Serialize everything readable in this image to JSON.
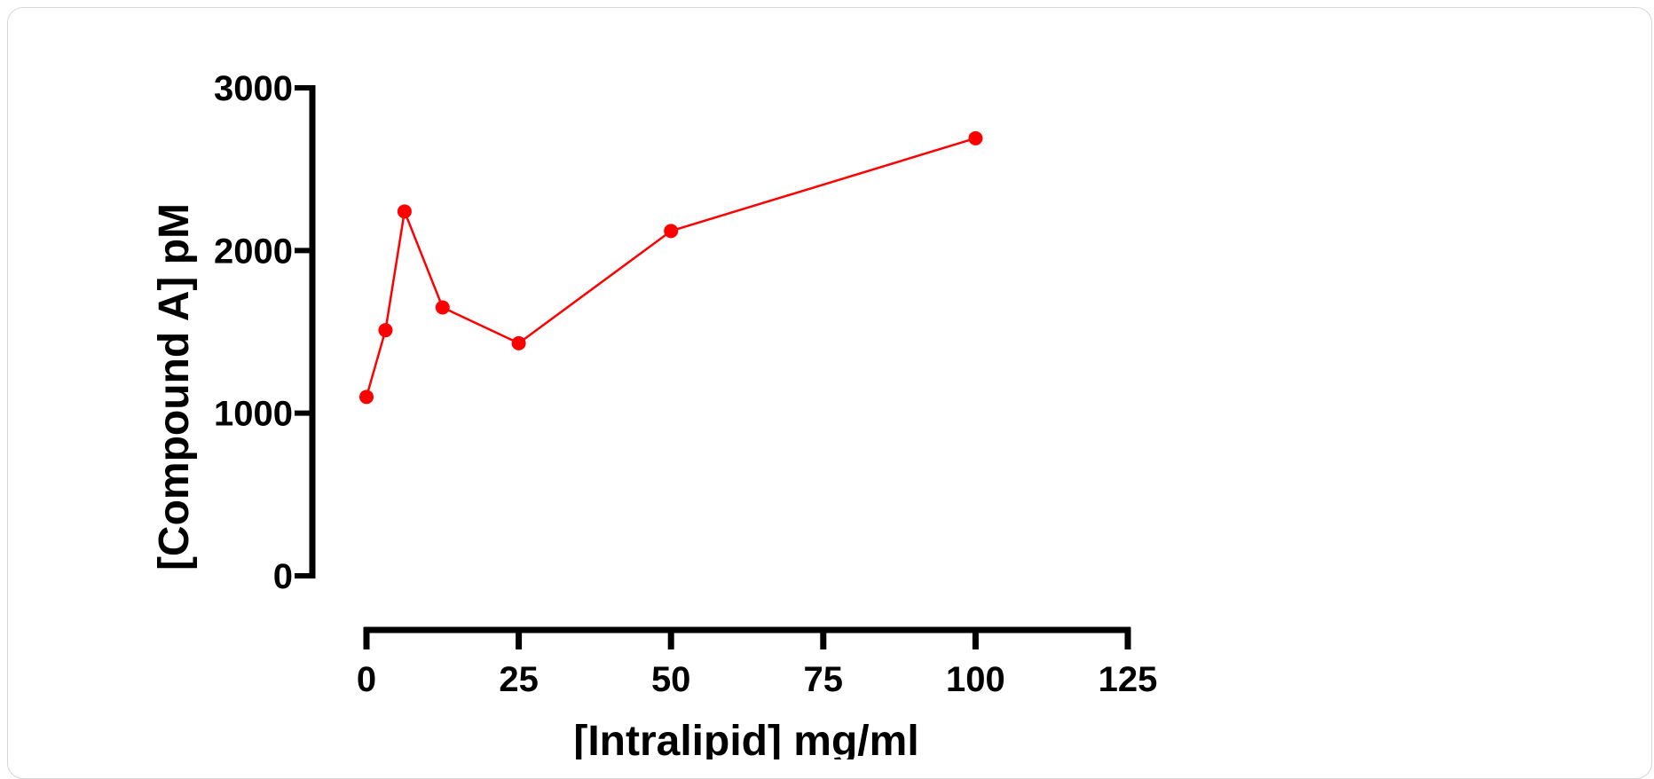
{
  "chart_data": {
    "type": "line",
    "title": "",
    "xlabel": "[Intralipid] mg/ml",
    "ylabel": "[Compound A] pM",
    "xlim": [
      0,
      125
    ],
    "ylim": [
      0,
      3000
    ],
    "x_ticks": [
      0,
      25,
      50,
      75,
      100,
      125
    ],
    "y_ticks": [
      0,
      1000,
      2000,
      3000
    ],
    "x_tick_labels": [
      "0",
      "25",
      "50",
      "75",
      "100",
      "125"
    ],
    "y_tick_labels": [
      "0",
      "1000",
      "2000",
      "3000"
    ],
    "grid": false,
    "legend": "none",
    "series": [
      {
        "color": "#ff0000",
        "x": [
          0,
          3.125,
          6.25,
          12.5,
          25,
          50,
          100
        ],
        "y": [
          1100,
          1510,
          2240,
          1650,
          1430,
          2120,
          2690
        ]
      }
    ]
  }
}
